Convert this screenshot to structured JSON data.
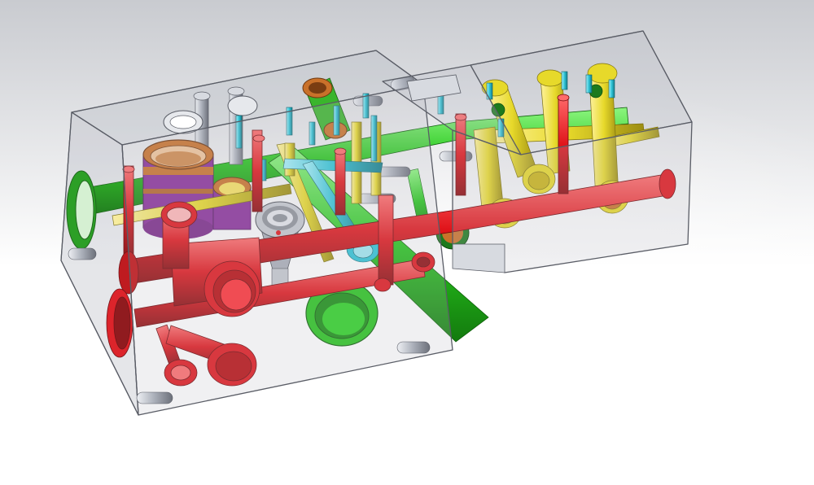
{
  "viewport": {
    "background_top": "#c9cbd0",
    "background_bottom": "#ffffff"
  },
  "model": {
    "block_fill": "#b9bcc6",
    "block_edge": "#5a5d66",
    "colors": {
      "red": "#e0141a",
      "green": "#26c51c",
      "yellow": "#e7d92a",
      "cyan": "#2ec3d6",
      "purple": "#8a2f9a",
      "orange": "#c9712a",
      "gray": "#a9aeb8",
      "dark_green": "#1d7a1d"
    }
  }
}
